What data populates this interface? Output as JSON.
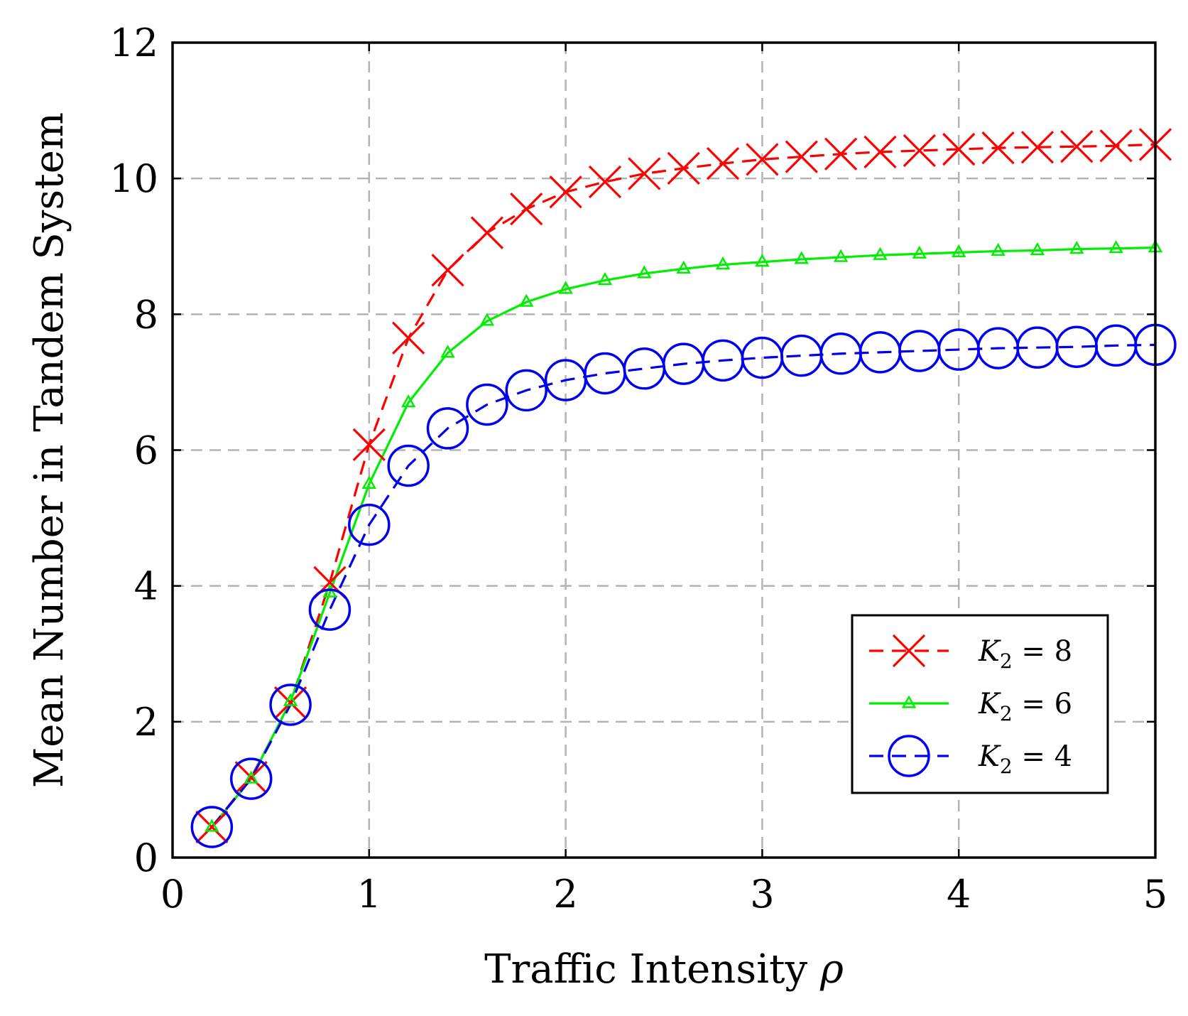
{
  "chart_data": {
    "type": "line",
    "title": "",
    "xlabel": "Traffic Intensity",
    "xlabel_symbol": "ρ",
    "ylabel": "Mean Number in Tandem System",
    "xlim": [
      0,
      5
    ],
    "ylim": [
      0,
      12
    ],
    "xticks": [
      0,
      1,
      2,
      3,
      4,
      5
    ],
    "yticks": [
      0,
      2,
      4,
      6,
      8,
      10,
      12
    ],
    "grid": true,
    "legend_position": "bottom-right",
    "x": [
      0.2,
      0.4,
      0.6,
      0.8,
      1.0,
      1.2,
      1.4,
      1.6,
      1.8,
      2.0,
      2.2,
      2.4,
      2.6,
      2.8,
      3.0,
      3.2,
      3.4,
      3.6,
      3.8,
      4.0,
      4.2,
      4.4,
      4.6,
      4.8,
      5.0
    ],
    "series": [
      {
        "name": "K2 = 8",
        "legend_var": "K",
        "legend_sub": "2",
        "legend_rest": " = 8",
        "color": "#ff0000",
        "marker": "x",
        "line": "dashed",
        "values": [
          0.45,
          1.18,
          2.28,
          4.05,
          6.08,
          7.65,
          8.65,
          9.2,
          9.55,
          9.8,
          9.95,
          10.07,
          10.15,
          10.22,
          10.28,
          10.32,
          10.36,
          10.39,
          10.41,
          10.43,
          10.45,
          10.46,
          10.47,
          10.48,
          10.5
        ]
      },
      {
        "name": "K2 = 6",
        "legend_var": "K",
        "legend_sub": "2",
        "legend_rest": " = 6",
        "color": "#00ee00",
        "marker": "triangle",
        "line": "solid",
        "values": [
          0.45,
          1.16,
          2.3,
          3.9,
          5.5,
          6.7,
          7.43,
          7.9,
          8.18,
          8.37,
          8.5,
          8.6,
          8.67,
          8.73,
          8.77,
          8.81,
          8.84,
          8.87,
          8.89,
          8.91,
          8.93,
          8.94,
          8.96,
          8.97,
          8.98
        ]
      },
      {
        "name": "K2 = 4",
        "legend_var": "K",
        "legend_sub": "2",
        "legend_rest": " = 4",
        "color": "#0000ee",
        "marker": "circle",
        "line": "dashed",
        "values": [
          0.45,
          1.16,
          2.25,
          3.65,
          4.9,
          5.77,
          6.32,
          6.67,
          6.88,
          7.03,
          7.13,
          7.2,
          7.27,
          7.32,
          7.36,
          7.39,
          7.42,
          7.44,
          7.46,
          7.48,
          7.5,
          7.51,
          7.52,
          7.54,
          7.55
        ]
      }
    ]
  }
}
